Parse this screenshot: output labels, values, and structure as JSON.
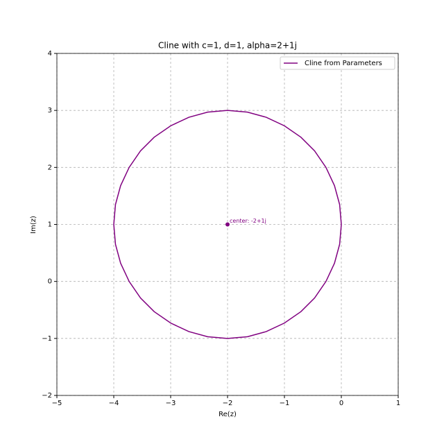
{
  "chart_data": {
    "type": "line",
    "title": "Cline with c=1, d=1, alpha=2+1j",
    "x_label": "Re(z)",
    "y_label": "Im(z)",
    "xlim": [
      -5,
      1
    ],
    "ylim": [
      -2,
      4
    ],
    "xticks": [
      {
        "value": -5,
        "label": "−5"
      },
      {
        "value": -4,
        "label": "−4"
      },
      {
        "value": -3,
        "label": "−3"
      },
      {
        "value": -2,
        "label": "−2"
      },
      {
        "value": -1,
        "label": "−1"
      },
      0,
      1
    ],
    "yticks": [
      {
        "value": -2,
        "label": "−2"
      },
      {
        "value": -1,
        "label": "−1"
      },
      0,
      1,
      2,
      3,
      4
    ],
    "grid": true,
    "legend": "upper right",
    "series": [
      {
        "name": "Cline from Parameters",
        "color": "#800080",
        "x": [
          0,
          -0.03,
          -0.12,
          -0.27,
          -0.47,
          -0.71,
          -1,
          -1.32,
          -1.65,
          -2,
          -2.35,
          -2.68,
          -3,
          -3.29,
          -3.53,
          -3.73,
          -3.88,
          -3.97,
          -4,
          -3.97,
          -3.88,
          -3.73,
          -3.53,
          -3.29,
          -3,
          -2.68,
          -2.35,
          -2,
          -1.65,
          -1.32,
          -1,
          -0.71,
          -0.47,
          -0.27,
          -0.12,
          -0.03,
          0
        ],
        "values": [
          1,
          1.35,
          1.68,
          2,
          2.29,
          2.53,
          2.73,
          2.88,
          2.97,
          3,
          2.97,
          2.88,
          2.73,
          2.53,
          2.29,
          2,
          1.68,
          1.35,
          1,
          0.65,
          0.32,
          0,
          -0.29,
          -0.53,
          -0.73,
          -0.88,
          -0.97,
          -1,
          -0.97,
          -0.88,
          -0.73,
          -0.53,
          -0.29,
          0,
          0.32,
          0.65,
          1
        ]
      }
    ],
    "center": {
      "x": -2,
      "y": 1,
      "label": "center: -2+1j",
      "color": "#800080"
    }
  }
}
